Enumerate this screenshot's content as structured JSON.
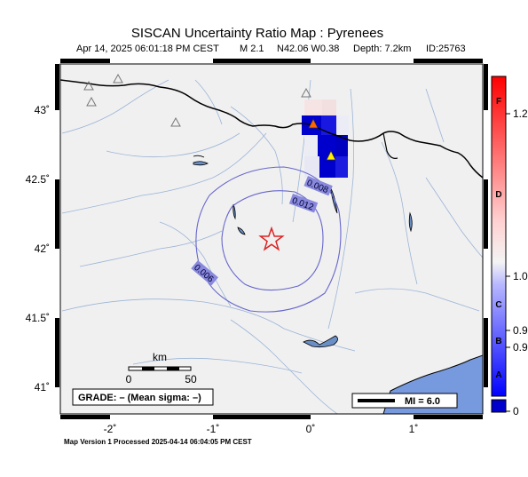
{
  "header": {
    "title": "SISCAN Uncertainty Ratio Map : Pyrenees",
    "date": "Apr 14, 2025 06:01:18 PM CEST",
    "magnitude": "M 2.1",
    "location": "N42.06 W0.38",
    "depth": "Depth: 7.2km",
    "event_id": "ID:25763"
  },
  "axes": {
    "lon_ticks": [
      "-2˚",
      "-1˚",
      "0˚",
      "1˚"
    ],
    "lat_ticks": [
      "43˚",
      "42.5˚",
      "42˚",
      "41.5˚",
      "41˚"
    ]
  },
  "contours": [
    {
      "label": "0.008"
    },
    {
      "label": "0.012"
    },
    {
      "label": "0.006"
    }
  ],
  "scale_bar": {
    "unit": "km",
    "labels": [
      "0",
      "50"
    ]
  },
  "grade_box": {
    "text": "GRADE: – (Mean sigma: –)"
  },
  "mi_legend": {
    "text": "MI = 6.0"
  },
  "colorbar": {
    "letters": [
      "F",
      "D",
      "C",
      "B",
      "A"
    ],
    "values": [
      "1.2",
      "1.0",
      "0.9",
      "0.9",
      "0"
    ]
  },
  "footer": {
    "processed": "Map Version 1 Processed 2025-04-14 06:04:05 PM CEST"
  },
  "epicenter": {
    "lat": 42.06,
    "lon": -0.38
  },
  "colors": {
    "epicenter": "#dd2222",
    "contour": "#6666cc",
    "high_cell": "#0000cc",
    "sea": "#7799dd",
    "land": "#f0f0f0"
  }
}
